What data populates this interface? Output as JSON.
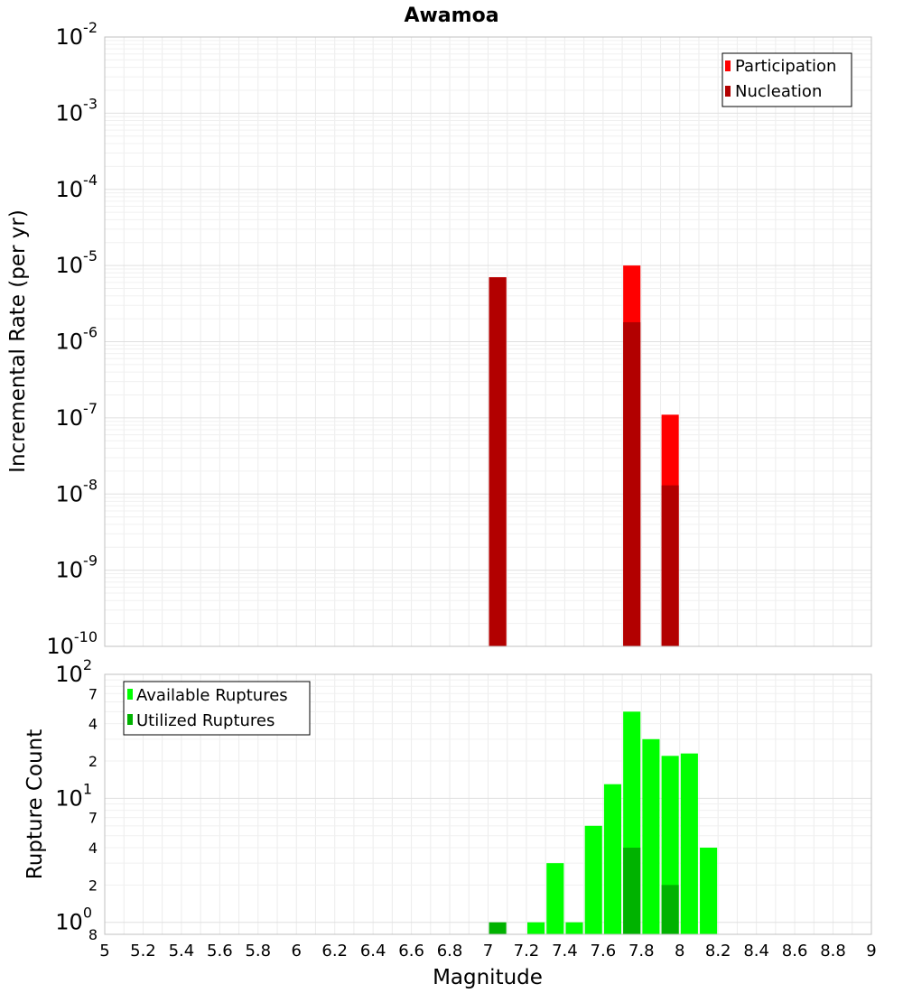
{
  "chart_data": [
    {
      "type": "bar",
      "title": "Awamoa",
      "xlabel": "Magnitude",
      "ylabel": "Incremental Rate (per yr)",
      "yscale": "log",
      "ylim": [
        1e-10,
        0.01
      ],
      "xlim": [
        5,
        9
      ],
      "grid": true,
      "legend_position": "top-right",
      "y_tick_labels": [
        {
          "base": "10",
          "exp": "-2",
          "value": 0.01
        },
        {
          "base": "10",
          "exp": "-3",
          "value": 0.001
        },
        {
          "base": "10",
          "exp": "-4",
          "value": 0.0001
        },
        {
          "base": "10",
          "exp": "-5",
          "value": 1e-05
        },
        {
          "base": "10",
          "exp": "-6",
          "value": 1e-06
        },
        {
          "base": "10",
          "exp": "-7",
          "value": 1e-07
        },
        {
          "base": "10",
          "exp": "-8",
          "value": 1e-08
        },
        {
          "base": "10",
          "exp": "-9",
          "value": 1e-09
        },
        {
          "base": "10",
          "exp": "-10",
          "value": 1e-10
        }
      ],
      "series": [
        {
          "name": "Participation",
          "color": "#ff0000",
          "points": [
            {
              "x": 7.05,
              "y": 7e-06
            },
            {
              "x": 7.75,
              "y": 1e-05
            },
            {
              "x": 7.95,
              "y": 1.1e-07
            }
          ]
        },
        {
          "name": "Nucleation",
          "color": "#b20000",
          "points": [
            {
              "x": 7.05,
              "y": 7e-06
            },
            {
              "x": 7.75,
              "y": 1.8e-06
            },
            {
              "x": 7.95,
              "y": 1.3e-08
            }
          ]
        }
      ]
    },
    {
      "type": "bar",
      "xlabel": "Magnitude",
      "ylabel": "Rupture Count",
      "yscale": "log",
      "ylim": [
        0.8,
        100
      ],
      "xlim": [
        5,
        9
      ],
      "grid": true,
      "legend_position": "top-left",
      "x_ticks": [
        5,
        5.2,
        5.4,
        5.6,
        5.8,
        6,
        6.2,
        6.4,
        6.6,
        6.8,
        7,
        7.2,
        7.4,
        7.6,
        7.8,
        8,
        8.2,
        8.4,
        8.6,
        8.8,
        9
      ],
      "x_tick_labels": [
        "5",
        "5.2",
        "5.4",
        "5.6",
        "5.8",
        "6",
        "6.2",
        "6.4",
        "6.6",
        "6.8",
        "7",
        "7.2",
        "7.4",
        "7.6",
        "7.8",
        "8",
        "8.2",
        "8.4",
        "8.6",
        "8.8",
        "9"
      ],
      "y_major_ticks": [
        {
          "base": "10",
          "exp": "2",
          "value": 100
        },
        {
          "base": "10",
          "exp": "1",
          "value": 10
        },
        {
          "base": "10",
          "exp": "0",
          "value": 1
        }
      ],
      "y_minor_ticks": [
        {
          "label": "7",
          "value": 70
        },
        {
          "label": "4",
          "value": 40
        },
        {
          "label": "2",
          "value": 20
        },
        {
          "label": "7",
          "value": 7
        },
        {
          "label": "4",
          "value": 4
        },
        {
          "label": "2",
          "value": 2
        },
        {
          "label": "8",
          "value": 0.8
        }
      ],
      "series": [
        {
          "name": "Available Ruptures",
          "color": "#00ff00",
          "points": [
            {
              "x": 7.25,
              "y": 1
            },
            {
              "x": 7.35,
              "y": 3
            },
            {
              "x": 7.45,
              "y": 1
            },
            {
              "x": 7.55,
              "y": 6
            },
            {
              "x": 7.65,
              "y": 13
            },
            {
              "x": 7.75,
              "y": 50
            },
            {
              "x": 7.85,
              "y": 30
            },
            {
              "x": 7.95,
              "y": 22
            },
            {
              "x": 8.05,
              "y": 23
            },
            {
              "x": 8.15,
              "y": 4
            }
          ]
        },
        {
          "name": "Utilized Ruptures",
          "color": "#00b200",
          "points": [
            {
              "x": 7.05,
              "y": 1
            },
            {
              "x": 7.75,
              "y": 4
            },
            {
              "x": 7.95,
              "y": 2
            }
          ]
        }
      ]
    }
  ]
}
